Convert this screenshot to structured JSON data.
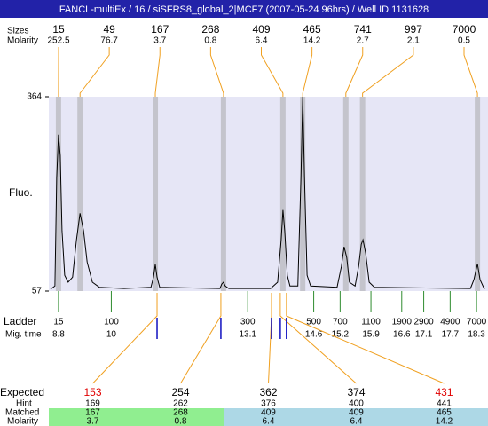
{
  "chart_data": {
    "type": "electropherogram",
    "title": "FANCL-multiEx / 16 / siSFRS8_global_2|MCF7 (2007-05-24 96hrs) / Well ID 1131628",
    "ylabel": "Fluo.",
    "ylim": [
      57,
      364
    ],
    "yticks": [
      57,
      364
    ],
    "xlim": [
      8.58,
      18.56
    ],
    "color": "#000000",
    "x": [
      8.62,
      8.72,
      8.76,
      8.8,
      8.84,
      8.88,
      8.94,
      9.02,
      9.12,
      9.21,
      9.29,
      9.37,
      9.45,
      9.57,
      9.73,
      10.29,
      10.9,
      10.96,
      11.0,
      11.04,
      11.1,
      12.47,
      12.51,
      12.55,
      12.59,
      12.67,
      13.62,
      13.78,
      13.86,
      13.9,
      13.94,
      14.0,
      14.06,
      14.24,
      14.31,
      14.35,
      14.39,
      14.45,
      14.53,
      15.13,
      15.23,
      15.29,
      15.35,
      15.41,
      15.54,
      15.62,
      15.68,
      15.72,
      15.78,
      15.86,
      15.98,
      18.16,
      18.24,
      18.32,
      18.38,
      18.48
    ],
    "values": [
      60,
      65,
      236,
      304,
      271,
      152,
      82,
      71,
      79,
      138,
      180,
      152,
      103,
      71,
      63,
      61,
      63,
      79,
      99,
      79,
      63,
      61,
      68,
      71,
      65,
      61,
      61,
      71,
      138,
      185,
      152,
      82,
      65,
      65,
      236,
      364,
      236,
      82,
      65,
      63,
      96,
      127,
      110,
      71,
      65,
      96,
      131,
      138,
      117,
      71,
      63,
      61,
      75,
      100,
      75,
      60
    ],
    "peaks": {
      "label_size": "Sizes",
      "label_molarity": "Molarity",
      "band_color": "#c4c4cc",
      "items": [
        {
          "size": 15,
          "molarity": 252.5,
          "time": 8.8
        },
        {
          "size": 49,
          "molarity": 76.7,
          "time": 9.29
        },
        {
          "size": 167,
          "molarity": 3.7,
          "time": 11.0
        },
        {
          "size": 268,
          "molarity": 0.8,
          "time": 12.55
        },
        {
          "size": 409,
          "molarity": 6.4,
          "time": 13.9
        },
        {
          "size": 465,
          "molarity": 14.2,
          "time": 14.35
        },
        {
          "size": 741,
          "molarity": 2.7,
          "time": 15.33
        },
        {
          "size": 997,
          "molarity": 2.1,
          "time": 15.71
        },
        {
          "size": 7000,
          "molarity": 0.5,
          "time": 18.32
        }
      ]
    },
    "ladder": {
      "label": "Ladder",
      "label_time": "Mig. time",
      "color": "#2e8b2e",
      "sizes": [
        15,
        100,
        300,
        500,
        700,
        1100,
        1900,
        2900,
        4900,
        7000
      ],
      "times": [
        8.8,
        10,
        13.1,
        14.6,
        15.2,
        15.9,
        16.6,
        17.1,
        17.7,
        18.3
      ]
    },
    "expected": {
      "label_expected": "Expected",
      "label_hint": "Hint",
      "label_matched": "Matched",
      "label_molarity": "Molarity",
      "mark_color": "#1010c0",
      "columns": [
        {
          "expected": 153,
          "hint": 169,
          "matched": 167,
          "molarity": 3.7,
          "time": 11.04,
          "color": "#e00000",
          "match_color": "#90ee90"
        },
        {
          "expected": 254,
          "hint": 262,
          "matched": 268,
          "molarity": 0.8,
          "time": 12.49,
          "color": "#000000",
          "match_color": "#90ee90"
        },
        {
          "expected": 362,
          "hint": 376,
          "matched": 409,
          "molarity": 6.4,
          "time": 13.64,
          "color": "#000000",
          "match_color": "#add8e6"
        },
        {
          "expected": 374,
          "hint": 400,
          "matched": 409,
          "molarity": 6.4,
          "time": 13.84,
          "color": "#000000",
          "match_color": "#add8e6"
        },
        {
          "expected": 431,
          "hint": 441,
          "matched": 465,
          "molarity": 14.2,
          "time": 13.98,
          "color": "#e00000",
          "match_color": "#add8e6"
        }
      ]
    }
  }
}
